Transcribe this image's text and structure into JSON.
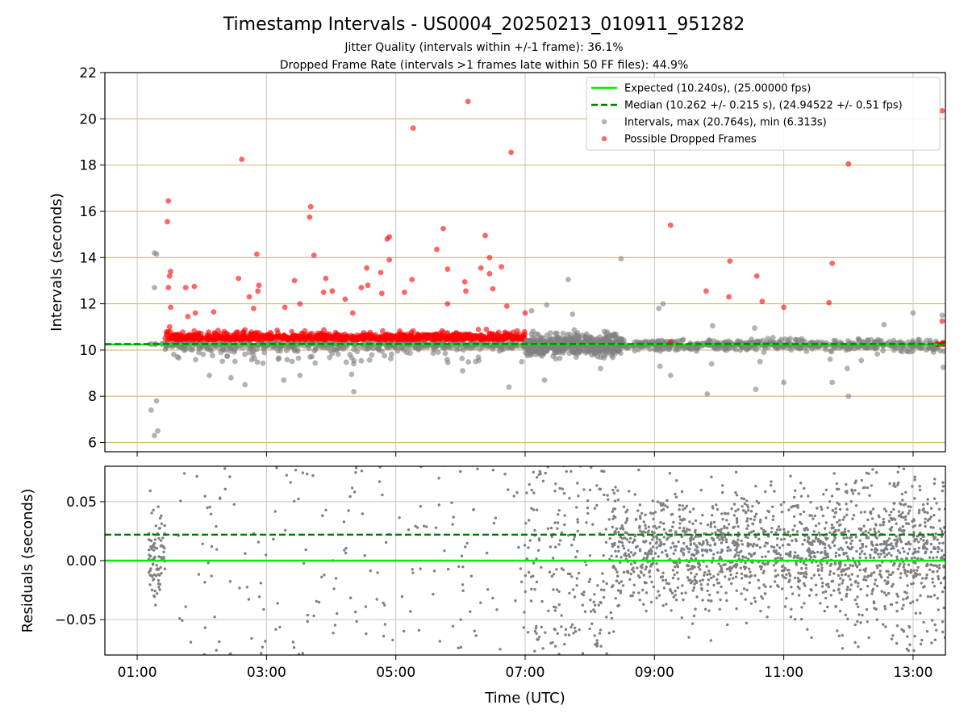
{
  "title": "Timestamp Intervals - US0004_20250213_010911_951282",
  "subtitle_1": "Jitter Quality (intervals within +/-1 frame): 36.1%",
  "subtitle_2": "Dropped Frame Rate (intervals >1 frames late within 50 FF files): 44.9%",
  "x_axis": {
    "label": "Time (UTC)",
    "range": [
      "00:30",
      "13:30"
    ],
    "ticks": [
      "01:00",
      "03:00",
      "05:00",
      "07:00",
      "09:00",
      "11:00",
      "13:00"
    ]
  },
  "colors": {
    "expected": "#00ee00",
    "median": "#008000",
    "intervals": "#808080",
    "dropped": "#ff0000",
    "hline": "#d4b870",
    "grid": "#c8c8c8"
  },
  "chart_data": [
    {
      "type": "scatter",
      "panel": "intervals",
      "ylabel": "Intervals (seconds)",
      "ylim": [
        5.6,
        22
      ],
      "yticks": [
        "6",
        "8",
        "10",
        "12",
        "14",
        "16",
        "18",
        "20",
        "22"
      ],
      "grid": true,
      "horizontal_lines_at": [
        6,
        8,
        10,
        12,
        14,
        16,
        18,
        20,
        22
      ],
      "legend_position": "upper right",
      "legend": {
        "expected": "Expected (10.240s), (25.00000 fps)",
        "median": "Median (10.262 +/- 0.215 s), (24.94522 +/- 0.51 fps)",
        "intervals": "Intervals, max (20.764s), min (6.313s)",
        "dropped": "Possible Dropped Frames"
      },
      "expected_line": 10.24,
      "median_line": 10.262,
      "outliers_dropped": [
        {
          "t": "01:29",
          "y": 16.45
        },
        {
          "t": "01:28",
          "y": 15.55
        },
        {
          "t": "01:31",
          "y": 13.4
        },
        {
          "t": "01:30",
          "y": 13.2
        },
        {
          "t": "01:29",
          "y": 12.7
        },
        {
          "t": "01:31",
          "y": 11.85
        },
        {
          "t": "01:30",
          "y": 11.0
        },
        {
          "t": "01:45",
          "y": 12.7
        },
        {
          "t": "01:53",
          "y": 12.75
        },
        {
          "t": "01:47",
          "y": 11.45
        },
        {
          "t": "01:54",
          "y": 11.6
        },
        {
          "t": "02:11",
          "y": 11.65
        },
        {
          "t": "02:37",
          "y": 18.25
        },
        {
          "t": "02:34",
          "y": 13.1
        },
        {
          "t": "02:44",
          "y": 12.3
        },
        {
          "t": "02:48",
          "y": 11.8
        },
        {
          "t": "02:51",
          "y": 14.15
        },
        {
          "t": "02:53",
          "y": 12.8
        },
        {
          "t": "02:52",
          "y": 12.55
        },
        {
          "t": "03:17",
          "y": 11.85
        },
        {
          "t": "03:26",
          "y": 13.0
        },
        {
          "t": "03:31",
          "y": 12.0
        },
        {
          "t": "03:41",
          "y": 16.2
        },
        {
          "t": "03:40",
          "y": 15.75
        },
        {
          "t": "03:44",
          "y": 14.1
        },
        {
          "t": "03:53",
          "y": 12.5
        },
        {
          "t": "03:55",
          "y": 13.1
        },
        {
          "t": "04:01",
          "y": 12.55
        },
        {
          "t": "04:13",
          "y": 12.2
        },
        {
          "t": "04:20",
          "y": 11.6
        },
        {
          "t": "04:28",
          "y": 12.7
        },
        {
          "t": "04:34",
          "y": 12.8
        },
        {
          "t": "04:33",
          "y": 13.55
        },
        {
          "t": "04:46",
          "y": 13.35
        },
        {
          "t": "04:47",
          "y": 12.45
        },
        {
          "t": "04:52",
          "y": 14.8
        },
        {
          "t": "04:54",
          "y": 14.9
        },
        {
          "t": "04:54",
          "y": 13.9
        },
        {
          "t": "05:08",
          "y": 12.5
        },
        {
          "t": "05:15",
          "y": 13.05
        },
        {
          "t": "05:16",
          "y": 19.6
        },
        {
          "t": "05:38",
          "y": 14.35
        },
        {
          "t": "05:44",
          "y": 15.25
        },
        {
          "t": "05:48",
          "y": 13.5
        },
        {
          "t": "05:48",
          "y": 12.0
        },
        {
          "t": "06:04",
          "y": 12.95
        },
        {
          "t": "06:05",
          "y": 12.55
        },
        {
          "t": "06:07",
          "y": 20.75
        },
        {
          "t": "06:19",
          "y": 13.55
        },
        {
          "t": "06:23",
          "y": 14.95
        },
        {
          "t": "06:27",
          "y": 14.0
        },
        {
          "t": "06:27",
          "y": 13.3
        },
        {
          "t": "06:30",
          "y": 12.65
        },
        {
          "t": "06:38",
          "y": 13.6
        },
        {
          "t": "06:43",
          "y": 11.9
        },
        {
          "t": "06:47",
          "y": 18.55
        },
        {
          "t": "07:00",
          "y": 11.6
        },
        {
          "t": "09:15",
          "y": 15.4
        },
        {
          "t": "09:15",
          "y": 10.35
        },
        {
          "t": "09:48",
          "y": 12.55
        },
        {
          "t": "10:09",
          "y": 12.3
        },
        {
          "t": "10:10",
          "y": 13.85
        },
        {
          "t": "10:35",
          "y": 13.2
        },
        {
          "t": "10:40",
          "y": 12.1
        },
        {
          "t": "11:00",
          "y": 11.85
        },
        {
          "t": "11:42",
          "y": 12.05
        },
        {
          "t": "11:45",
          "y": 13.75
        },
        {
          "t": "12:00",
          "y": 18.05
        },
        {
          "t": "13:27",
          "y": 11.25
        },
        {
          "t": "13:27",
          "y": 20.35
        }
      ],
      "outliers_intervals": [
        {
          "t": "01:16",
          "y": 14.2
        },
        {
          "t": "01:18",
          "y": 14.15
        },
        {
          "t": "01:16",
          "y": 12.7
        },
        {
          "t": "01:13",
          "y": 7.4
        },
        {
          "t": "01:18",
          "y": 7.8
        },
        {
          "t": "01:16",
          "y": 6.3
        },
        {
          "t": "01:19",
          "y": 6.5
        },
        {
          "t": "02:07",
          "y": 8.9
        },
        {
          "t": "02:27",
          "y": 8.8
        },
        {
          "t": "02:40",
          "y": 8.5
        },
        {
          "t": "03:16",
          "y": 8.7
        },
        {
          "t": "03:31",
          "y": 8.9
        },
        {
          "t": "04:21",
          "y": 8.2
        },
        {
          "t": "04:19",
          "y": 8.95
        },
        {
          "t": "06:02",
          "y": 9.1
        },
        {
          "t": "06:45",
          "y": 8.4
        },
        {
          "t": "07:18",
          "y": 8.7
        },
        {
          "t": "07:20",
          "y": 11.95
        },
        {
          "t": "07:40",
          "y": 13.05
        },
        {
          "t": "08:29",
          "y": 13.95
        },
        {
          "t": "07:06",
          "y": 11.7
        },
        {
          "t": "07:44",
          "y": 11.55
        },
        {
          "t": "08:10",
          "y": 9.2
        },
        {
          "t": "09:04",
          "y": 11.8
        },
        {
          "t": "09:08",
          "y": 12.0
        },
        {
          "t": "09:15",
          "y": 8.9
        },
        {
          "t": "09:05",
          "y": 9.3
        },
        {
          "t": "09:49",
          "y": 8.1
        },
        {
          "t": "09:54",
          "y": 11.05
        },
        {
          "t": "09:53",
          "y": 9.4
        },
        {
          "t": "10:34",
          "y": 8.3
        },
        {
          "t": "10:38",
          "y": 9.5
        },
        {
          "t": "10:33",
          "y": 10.95
        },
        {
          "t": "11:00",
          "y": 8.6
        },
        {
          "t": "11:43",
          "y": 9.6
        },
        {
          "t": "11:45",
          "y": 8.6
        },
        {
          "t": "12:00",
          "y": 8.0
        },
        {
          "t": "11:59",
          "y": 9.2
        },
        {
          "t": "12:33",
          "y": 11.1
        },
        {
          "t": "13:00",
          "y": 11.6
        },
        {
          "t": "13:27",
          "y": 11.5
        },
        {
          "t": "13:28",
          "y": 9.25
        },
        {
          "t": "12:12",
          "y": 9.55
        }
      ]
    },
    {
      "type": "scatter",
      "panel": "residuals",
      "ylabel": "Residuals (seconds)",
      "ylim": [
        -0.08,
        0.08
      ],
      "yticks": [
        "−0.05",
        "0.00",
        "0.05"
      ],
      "grid": true,
      "expected_residual": 0.0,
      "median_residual": 0.022,
      "series": [
        {
          "name": "residuals",
          "color": "#808080"
        }
      ]
    }
  ]
}
